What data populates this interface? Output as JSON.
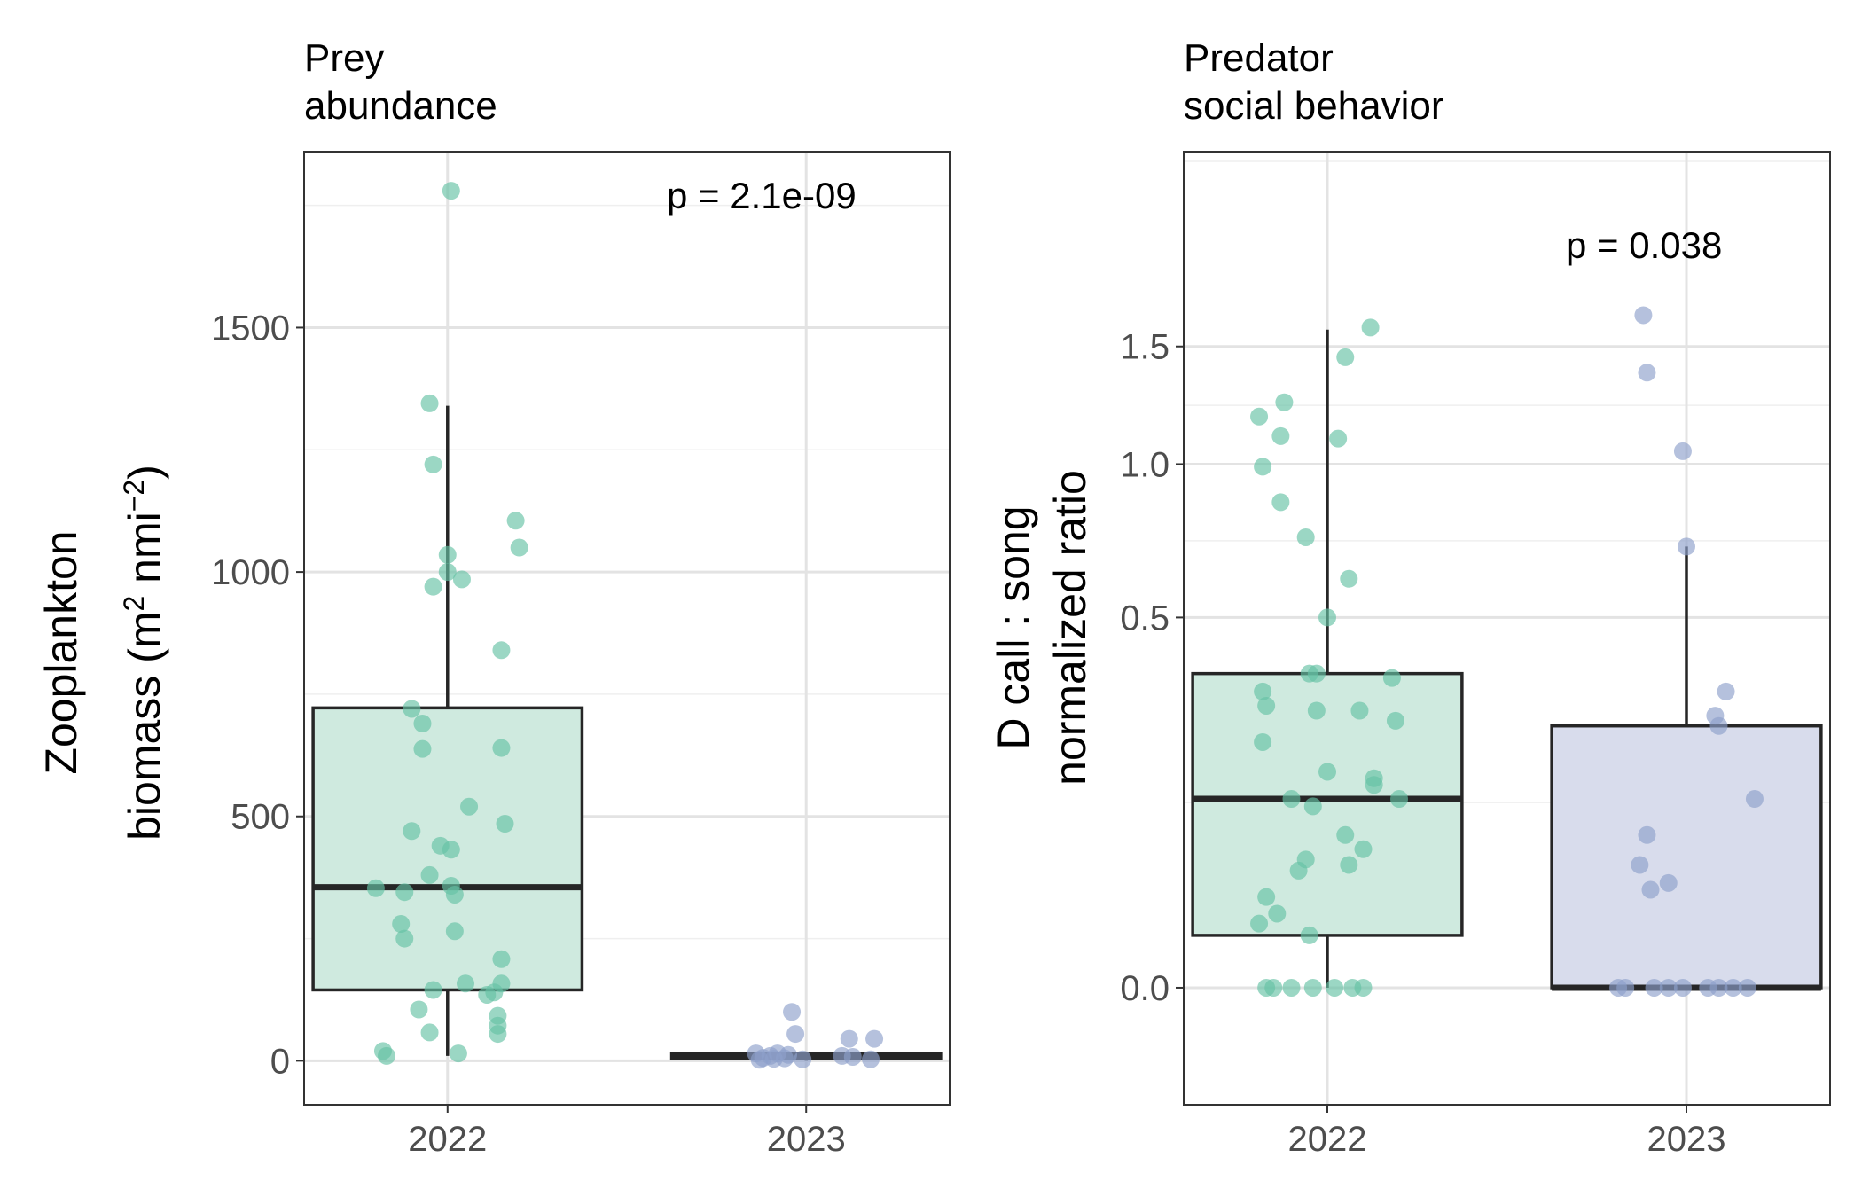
{
  "colors": {
    "year_2022": "#66c2a5",
    "year_2023": "#8da0cb",
    "box_2022_fill": "#cfeadf",
    "box_2023_fill": "#d8dcec",
    "grid_major": "#e3e3e3",
    "grid_minor": "#efefef",
    "panel_border": "#333333",
    "box_line": "#262626"
  },
  "chart_data": [
    {
      "type": "box",
      "title_line1": "Prey",
      "title_line2": "abundance",
      "ylabel_line1": "Zooplankton",
      "ylabel_prefix": "biomass (m",
      "ylabel_sup1": "2",
      "ylabel_mid": " nmi",
      "ylabel_sup2": "−2",
      "ylabel_suffix": ")",
      "xlabel": "",
      "annotation": "p = 2.1e-09",
      "categories": [
        "2022",
        "2023"
      ],
      "ylim": [
        -90,
        1860
      ],
      "y_ticks": [
        0,
        500,
        1000,
        1500
      ],
      "y_tick_labels": [
        "0",
        "500",
        "1000",
        "1500"
      ],
      "y_scale": "linear",
      "grid": true,
      "boxes": [
        {
          "category": "2022",
          "whisker_low": 10,
          "q1": 145,
          "median": 355,
          "q3": 722,
          "whisker_high": 1340
        },
        {
          "category": "2023",
          "whisker_low": 0,
          "q1": 5,
          "median": 10,
          "q3": 15,
          "whisker_high": 18
        }
      ],
      "points": [
        {
          "category": "2022",
          "jitter": 0.01,
          "y": 1780
        },
        {
          "category": "2022",
          "jitter": -0.05,
          "y": 1345
        },
        {
          "category": "2022",
          "jitter": -0.04,
          "y": 1220
        },
        {
          "category": "2022",
          "jitter": 0.19,
          "y": 1105
        },
        {
          "category": "2022",
          "jitter": 0.2,
          "y": 1050
        },
        {
          "category": "2022",
          "jitter": 0.0,
          "y": 1035
        },
        {
          "category": "2022",
          "jitter": 0.0,
          "y": 1000
        },
        {
          "category": "2022",
          "jitter": 0.04,
          "y": 985
        },
        {
          "category": "2022",
          "jitter": -0.04,
          "y": 970
        },
        {
          "category": "2022",
          "jitter": 0.15,
          "y": 840
        },
        {
          "category": "2022",
          "jitter": -0.1,
          "y": 720
        },
        {
          "category": "2022",
          "jitter": -0.07,
          "y": 690
        },
        {
          "category": "2022",
          "jitter": -0.07,
          "y": 638
        },
        {
          "category": "2022",
          "jitter": 0.15,
          "y": 640
        },
        {
          "category": "2022",
          "jitter": 0.06,
          "y": 520
        },
        {
          "category": "2022",
          "jitter": 0.16,
          "y": 485
        },
        {
          "category": "2022",
          "jitter": -0.1,
          "y": 470
        },
        {
          "category": "2022",
          "jitter": -0.02,
          "y": 440
        },
        {
          "category": "2022",
          "jitter": 0.01,
          "y": 432
        },
        {
          "category": "2022",
          "jitter": -0.05,
          "y": 380
        },
        {
          "category": "2022",
          "jitter": 0.01,
          "y": 358
        },
        {
          "category": "2022",
          "jitter": -0.2,
          "y": 353
        },
        {
          "category": "2022",
          "jitter": -0.12,
          "y": 345
        },
        {
          "category": "2022",
          "jitter": 0.02,
          "y": 340
        },
        {
          "category": "2022",
          "jitter": -0.13,
          "y": 280
        },
        {
          "category": "2022",
          "jitter": 0.02,
          "y": 265
        },
        {
          "category": "2022",
          "jitter": -0.12,
          "y": 250
        },
        {
          "category": "2022",
          "jitter": 0.15,
          "y": 208
        },
        {
          "category": "2022",
          "jitter": 0.15,
          "y": 158
        },
        {
          "category": "2022",
          "jitter": 0.05,
          "y": 158
        },
        {
          "category": "2022",
          "jitter": 0.13,
          "y": 140
        },
        {
          "category": "2022",
          "jitter": -0.04,
          "y": 145
        },
        {
          "category": "2022",
          "jitter": 0.11,
          "y": 135
        },
        {
          "category": "2022",
          "jitter": -0.08,
          "y": 105
        },
        {
          "category": "2022",
          "jitter": 0.14,
          "y": 92
        },
        {
          "category": "2022",
          "jitter": 0.14,
          "y": 72
        },
        {
          "category": "2022",
          "jitter": -0.05,
          "y": 58
        },
        {
          "category": "2022",
          "jitter": 0.14,
          "y": 55
        },
        {
          "category": "2022",
          "jitter": -0.18,
          "y": 20
        },
        {
          "category": "2022",
          "jitter": 0.03,
          "y": 15
        },
        {
          "category": "2022",
          "jitter": -0.17,
          "y": 10
        },
        {
          "category": "2023",
          "jitter": -0.04,
          "y": 100
        },
        {
          "category": "2023",
          "jitter": -0.03,
          "y": 55
        },
        {
          "category": "2023",
          "jitter": 0.12,
          "y": 45
        },
        {
          "category": "2023",
          "jitter": 0.19,
          "y": 45
        },
        {
          "category": "2023",
          "jitter": -0.14,
          "y": 15
        },
        {
          "category": "2023",
          "jitter": -0.08,
          "y": 15
        },
        {
          "category": "2023",
          "jitter": -0.05,
          "y": 12
        },
        {
          "category": "2023",
          "jitter": -0.1,
          "y": 10
        },
        {
          "category": "2023",
          "jitter": 0.1,
          "y": 10
        },
        {
          "category": "2023",
          "jitter": 0.13,
          "y": 8
        },
        {
          "category": "2023",
          "jitter": -0.12,
          "y": 6
        },
        {
          "category": "2023",
          "jitter": -0.06,
          "y": 5
        },
        {
          "category": "2023",
          "jitter": -0.09,
          "y": 4
        },
        {
          "category": "2023",
          "jitter": -0.01,
          "y": 3
        },
        {
          "category": "2023",
          "jitter": 0.18,
          "y": 3
        },
        {
          "category": "2023",
          "jitter": -0.13,
          "y": 2
        }
      ]
    },
    {
      "type": "box",
      "title_line1": "Predator",
      "title_line2": "social behavior",
      "ylabel_line1": "D call : song",
      "ylabel_line2": "normalized ratio",
      "xlabel": "",
      "annotation": "p = 0.038",
      "categories": [
        "2022",
        "2023"
      ],
      "ylim": [
        -0.05,
        2.55
      ],
      "y_ticks": [
        0.0,
        0.5,
        1.0,
        1.5
      ],
      "y_tick_labels": [
        "0.0",
        "0.5",
        "1.0",
        "1.5"
      ],
      "y_scale": "sqrt",
      "grid": true,
      "boxes": [
        {
          "category": "2022",
          "whisker_low": 0.0,
          "q1": 0.01,
          "median": 0.13,
          "q3": 0.36,
          "whisker_high": 1.58
        },
        {
          "category": "2023",
          "whisker_low": 0.0,
          "q1": 0.0,
          "median": 0.0,
          "q3": 0.25,
          "whisker_high": 0.71
        }
      ],
      "points": [
        {
          "category": "2022",
          "jitter": 0.12,
          "y": 1.59
        },
        {
          "category": "2022",
          "jitter": 0.05,
          "y": 1.45
        },
        {
          "category": "2022",
          "jitter": -0.12,
          "y": 1.25
        },
        {
          "category": "2022",
          "jitter": -0.19,
          "y": 1.19
        },
        {
          "category": "2022",
          "jitter": -0.13,
          "y": 1.11
        },
        {
          "category": "2022",
          "jitter": 0.03,
          "y": 1.1
        },
        {
          "category": "2022",
          "jitter": -0.18,
          "y": 0.99
        },
        {
          "category": "2022",
          "jitter": -0.13,
          "y": 0.86
        },
        {
          "category": "2022",
          "jitter": -0.06,
          "y": 0.74
        },
        {
          "category": "2022",
          "jitter": 0.06,
          "y": 0.61
        },
        {
          "category": "2022",
          "jitter": 0.0,
          "y": 0.5
        },
        {
          "category": "2022",
          "jitter": -0.05,
          "y": 0.36
        },
        {
          "category": "2022",
          "jitter": -0.03,
          "y": 0.36
        },
        {
          "category": "2022",
          "jitter": 0.18,
          "y": 0.35
        },
        {
          "category": "2022",
          "jitter": -0.18,
          "y": 0.32
        },
        {
          "category": "2022",
          "jitter": -0.17,
          "y": 0.29
        },
        {
          "category": "2022",
          "jitter": -0.03,
          "y": 0.28
        },
        {
          "category": "2022",
          "jitter": 0.09,
          "y": 0.28
        },
        {
          "category": "2022",
          "jitter": 0.19,
          "y": 0.26
        },
        {
          "category": "2022",
          "jitter": -0.18,
          "y": 0.22
        },
        {
          "category": "2022",
          "jitter": 0.0,
          "y": 0.17
        },
        {
          "category": "2022",
          "jitter": 0.13,
          "y": 0.16
        },
        {
          "category": "2022",
          "jitter": 0.13,
          "y": 0.15
        },
        {
          "category": "2022",
          "jitter": -0.1,
          "y": 0.13
        },
        {
          "category": "2022",
          "jitter": 0.2,
          "y": 0.13
        },
        {
          "category": "2022",
          "jitter": -0.04,
          "y": 0.12
        },
        {
          "category": "2022",
          "jitter": 0.05,
          "y": 0.085
        },
        {
          "category": "2022",
          "jitter": 0.1,
          "y": 0.07
        },
        {
          "category": "2022",
          "jitter": -0.06,
          "y": 0.06
        },
        {
          "category": "2022",
          "jitter": 0.06,
          "y": 0.055
        },
        {
          "category": "2022",
          "jitter": -0.08,
          "y": 0.05
        },
        {
          "category": "2022",
          "jitter": -0.17,
          "y": 0.03
        },
        {
          "category": "2022",
          "jitter": -0.14,
          "y": 0.02
        },
        {
          "category": "2022",
          "jitter": -0.19,
          "y": 0.015
        },
        {
          "category": "2022",
          "jitter": -0.05,
          "y": 0.01
        },
        {
          "category": "2022",
          "jitter": -0.17,
          "y": 0.0
        },
        {
          "category": "2022",
          "jitter": -0.15,
          "y": 0.0
        },
        {
          "category": "2022",
          "jitter": -0.1,
          "y": 0.0
        },
        {
          "category": "2022",
          "jitter": -0.04,
          "y": 0.0
        },
        {
          "category": "2022",
          "jitter": 0.02,
          "y": 0.0
        },
        {
          "category": "2022",
          "jitter": 0.07,
          "y": 0.0
        },
        {
          "category": "2022",
          "jitter": 0.1,
          "y": 0.0
        },
        {
          "category": "2023",
          "jitter": -0.12,
          "y": 1.65
        },
        {
          "category": "2023",
          "jitter": -0.11,
          "y": 1.38
        },
        {
          "category": "2023",
          "jitter": -0.01,
          "y": 1.05
        },
        {
          "category": "2023",
          "jitter": 0.0,
          "y": 0.71
        },
        {
          "category": "2023",
          "jitter": 0.11,
          "y": 0.32
        },
        {
          "category": "2023",
          "jitter": 0.08,
          "y": 0.27
        },
        {
          "category": "2023",
          "jitter": 0.09,
          "y": 0.25
        },
        {
          "category": "2023",
          "jitter": 0.19,
          "y": 0.13
        },
        {
          "category": "2023",
          "jitter": -0.11,
          "y": 0.085
        },
        {
          "category": "2023",
          "jitter": -0.13,
          "y": 0.055
        },
        {
          "category": "2023",
          "jitter": -0.05,
          "y": 0.04
        },
        {
          "category": "2023",
          "jitter": -0.1,
          "y": 0.035
        },
        {
          "category": "2023",
          "jitter": -0.19,
          "y": 0.0
        },
        {
          "category": "2023",
          "jitter": -0.17,
          "y": 0.0
        },
        {
          "category": "2023",
          "jitter": -0.09,
          "y": 0.0
        },
        {
          "category": "2023",
          "jitter": -0.05,
          "y": 0.0
        },
        {
          "category": "2023",
          "jitter": -0.01,
          "y": 0.0
        },
        {
          "category": "2023",
          "jitter": 0.06,
          "y": 0.0
        },
        {
          "category": "2023",
          "jitter": 0.09,
          "y": 0.0
        },
        {
          "category": "2023",
          "jitter": 0.13,
          "y": 0.0
        },
        {
          "category": "2023",
          "jitter": 0.17,
          "y": 0.0
        }
      ]
    }
  ]
}
